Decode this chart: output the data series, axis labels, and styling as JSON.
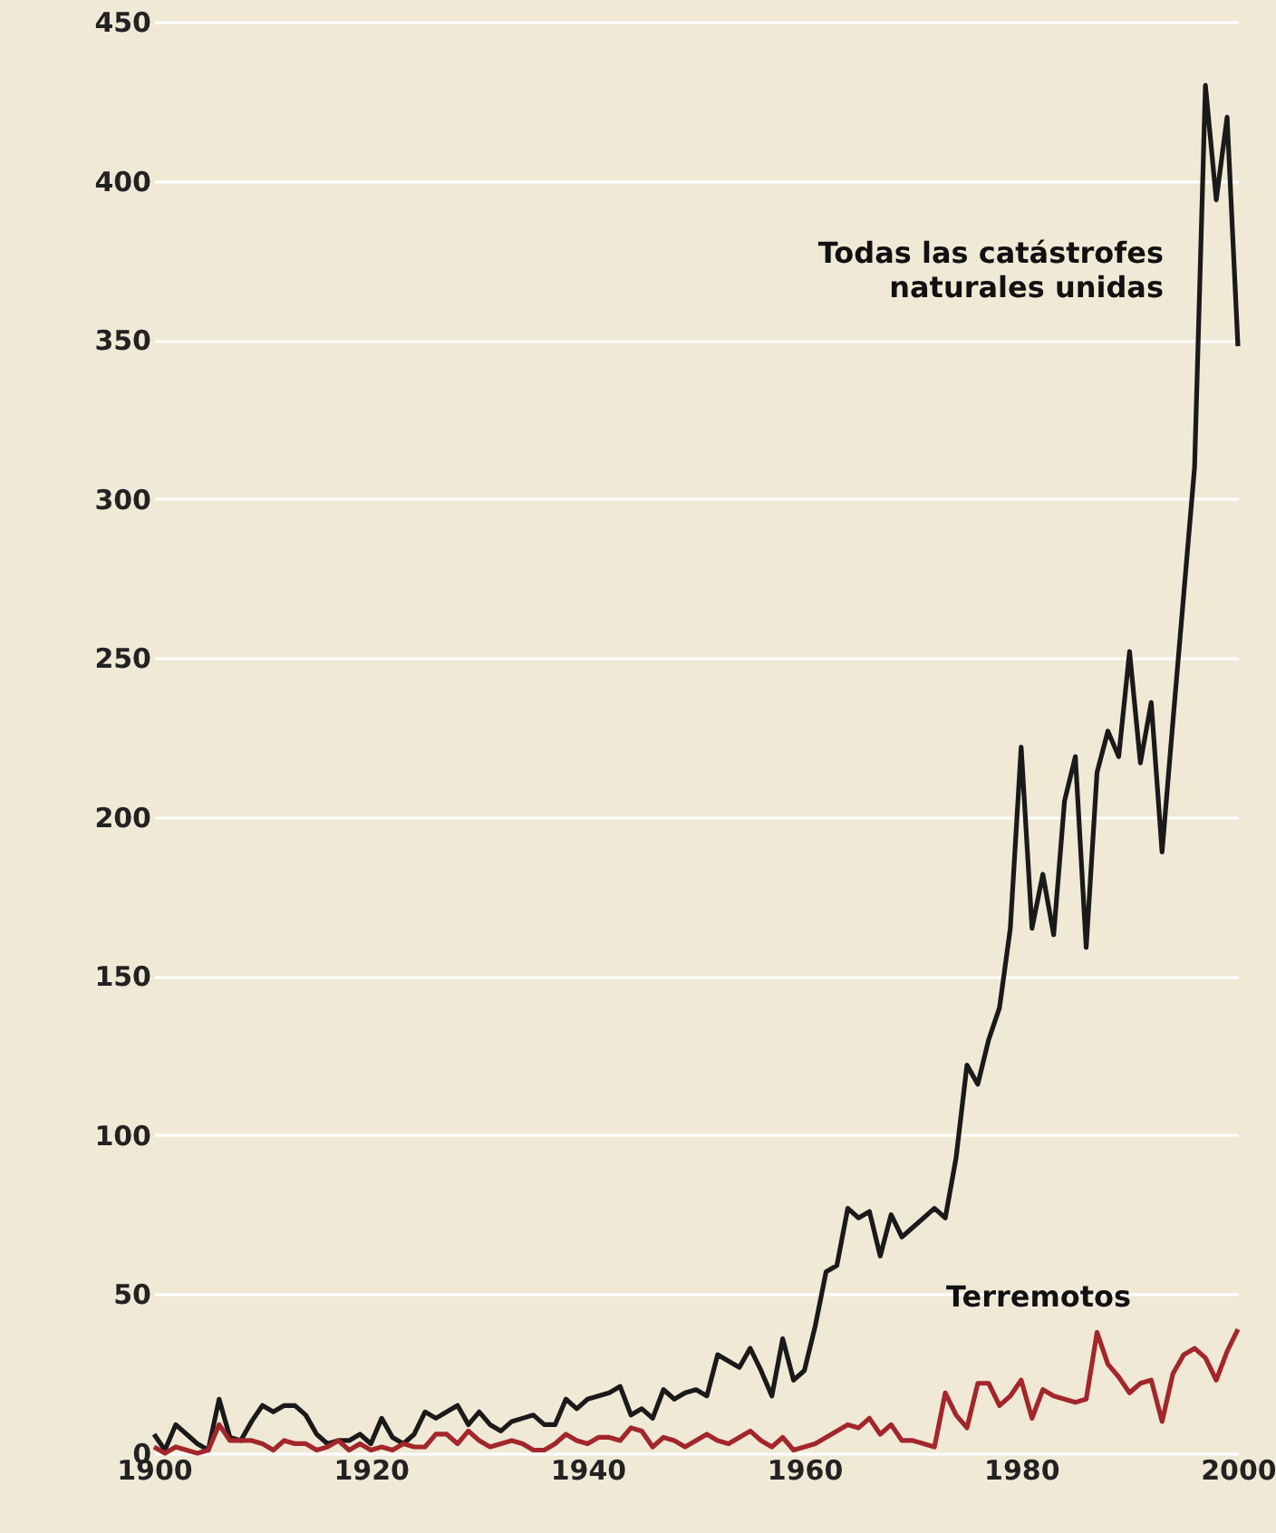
{
  "chart_data": {
    "type": "line",
    "x": [
      1900,
      1901,
      1902,
      1903,
      1904,
      1905,
      1906,
      1907,
      1908,
      1909,
      1910,
      1911,
      1912,
      1913,
      1914,
      1915,
      1916,
      1917,
      1918,
      1919,
      1920,
      1921,
      1922,
      1923,
      1924,
      1925,
      1926,
      1927,
      1928,
      1929,
      1930,
      1931,
      1932,
      1933,
      1934,
      1935,
      1936,
      1937,
      1938,
      1939,
      1940,
      1941,
      1942,
      1943,
      1944,
      1945,
      1946,
      1947,
      1948,
      1949,
      1950,
      1951,
      1952,
      1953,
      1954,
      1955,
      1956,
      1957,
      1958,
      1959,
      1960,
      1961,
      1962,
      1963,
      1964,
      1965,
      1966,
      1967,
      1968,
      1969,
      1970,
      1971,
      1972,
      1973,
      1974,
      1975,
      1976,
      1977,
      1978,
      1979,
      1980,
      1981,
      1982,
      1983,
      1984,
      1985,
      1986,
      1987,
      1988,
      1989,
      1990,
      1991,
      1992,
      1993,
      1994,
      1995,
      1996,
      1997,
      1998,
      1999,
      2000
    ],
    "series": [
      {
        "name": "Todas las catástrofes naturales unidas",
        "color": "#1a1a1a",
        "values": [
          6,
          1,
          9,
          6,
          3,
          1,
          17,
          5,
          4,
          10,
          15,
          13,
          15,
          15,
          12,
          6,
          3,
          4,
          4,
          6,
          3,
          11,
          5,
          3,
          6,
          13,
          11,
          13,
          15,
          9,
          13,
          9,
          7,
          10,
          11,
          12,
          9,
          9,
          17,
          14,
          17,
          18,
          19,
          21,
          12,
          14,
          11,
          20,
          17,
          19,
          20,
          18,
          31,
          29,
          27,
          33,
          26,
          18,
          36,
          23,
          26,
          40,
          57,
          59,
          77,
          74,
          76,
          62,
          75,
          68,
          71,
          74,
          77,
          74,
          93,
          122,
          116,
          130,
          140,
          165,
          222,
          165,
          182,
          163,
          205,
          219,
          159,
          214,
          227,
          219,
          252,
          217,
          236,
          189,
          230,
          270,
          310,
          430,
          394,
          420,
          348
        ]
      },
      {
        "name": "Terremotos",
        "color": "#a3262a",
        "values": [
          2,
          0,
          2,
          1,
          0,
          1,
          9,
          4,
          4,
          4,
          3,
          1,
          4,
          3,
          3,
          1,
          2,
          4,
          1,
          3,
          1,
          2,
          1,
          3,
          2,
          2,
          6,
          6,
          3,
          7,
          4,
          2,
          3,
          4,
          3,
          1,
          1,
          3,
          6,
          4,
          3,
          5,
          5,
          4,
          8,
          7,
          2,
          5,
          4,
          2,
          4,
          6,
          4,
          3,
          5,
          7,
          4,
          2,
          5,
          1,
          2,
          3,
          5,
          7,
          9,
          8,
          11,
          6,
          9,
          4,
          4,
          3,
          2,
          19,
          12,
          8,
          22,
          22,
          15,
          18,
          23,
          11,
          20,
          18,
          17,
          16,
          17,
          38,
          28,
          24,
          19,
          22,
          23,
          10,
          25,
          31,
          33,
          30,
          23,
          32,
          39
        ]
      }
    ],
    "xlim": [
      1900,
      2000
    ],
    "xticks": [
      1900,
      1920,
      1940,
      1960,
      1980,
      2000
    ],
    "ylim": [
      0,
      450
    ],
    "yticks": [
      0,
      50,
      100,
      150,
      200,
      250,
      300,
      350,
      400,
      450
    ],
    "grid": "y",
    "legend": false,
    "marker": "none",
    "line_style": "solid"
  }
}
